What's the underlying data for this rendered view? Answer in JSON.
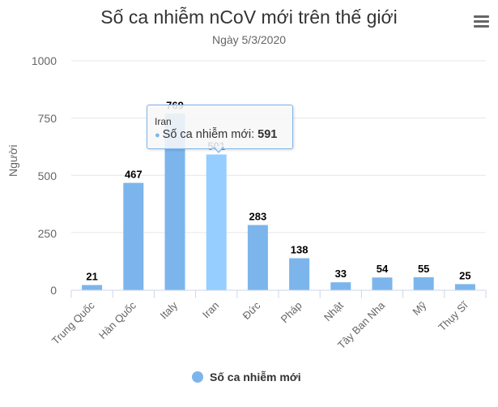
{
  "header": {
    "title": "Số ca nhiễm nCoV mới trên thế giới",
    "subtitle": "Ngày 5/3/2020",
    "menu_icon": "hamburger-menu-icon"
  },
  "axes": {
    "y_label": "Người",
    "y_ticks": [
      "1000",
      "750",
      "500",
      "250",
      "0"
    ]
  },
  "legend": {
    "label": "Số ca nhiễm mới",
    "color": "#7cb5ec"
  },
  "tooltip": {
    "header": "Iran",
    "series_label": "Số ca nhiễm mới: ",
    "value": "591"
  },
  "colors": {
    "bar": "#7cb5ec",
    "bar_hover": "#95ceff",
    "grid": "#e6e6e6",
    "axis": "#ccd6eb"
  },
  "chart_data": {
    "type": "bar",
    "title": "Số ca nhiễm nCoV mới trên thế giới",
    "subtitle": "Ngày 5/3/2020",
    "xlabel": "",
    "ylabel": "Người",
    "ylim": [
      0,
      1000
    ],
    "y_ticks": [
      0,
      250,
      500,
      750,
      1000
    ],
    "grid": true,
    "legend_position": "bottom",
    "categories": [
      "Trung Quốc",
      "Hàn Quốc",
      "Italy",
      "Iran",
      "Đức",
      "Pháp",
      "Nhật",
      "Tây Ban Nha",
      "Mỹ",
      "Thụy Sĩ"
    ],
    "series": [
      {
        "name": "Số ca nhiễm mới",
        "values": [
          21,
          467,
          769,
          591,
          283,
          138,
          33,
          54,
          55,
          25
        ]
      }
    ],
    "highlighted": {
      "category": "Iran",
      "value": 591
    }
  }
}
